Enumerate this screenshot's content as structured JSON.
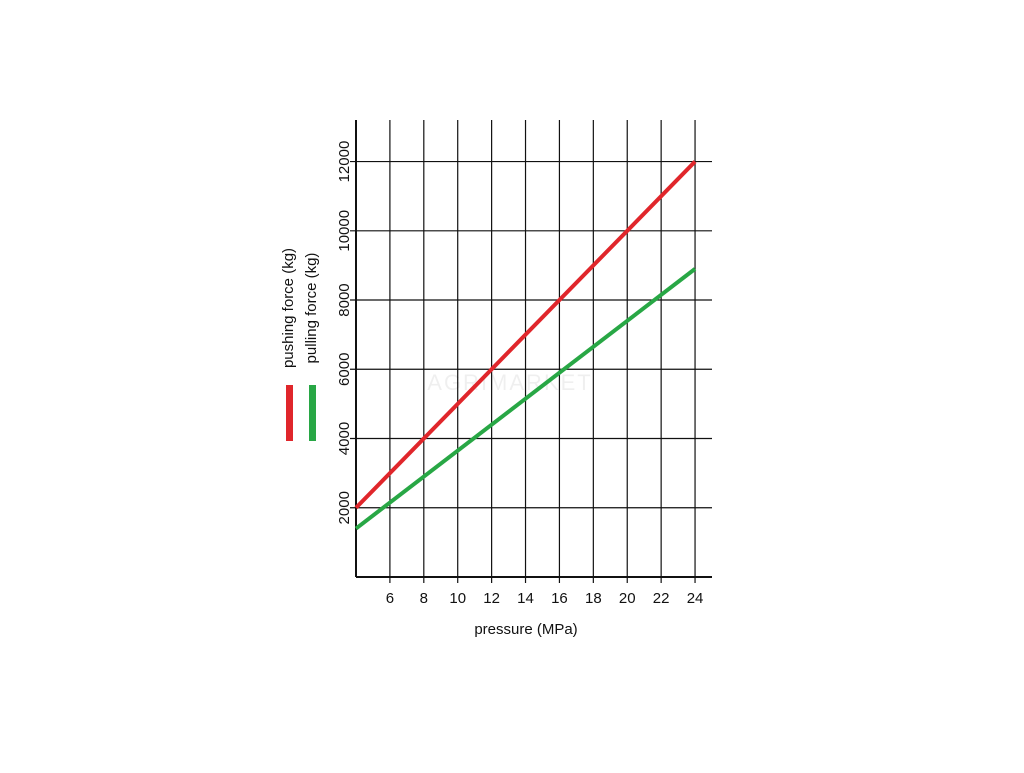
{
  "chart_data": {
    "type": "line",
    "x_label": "pressure (MPa)",
    "watermark": "AGRIMARKET",
    "x": [
      4,
      24
    ],
    "series": [
      {
        "name": "pushing force (kg)",
        "color": "#e0262b",
        "values": [
          2000,
          12000
        ]
      },
      {
        "name": "pulling force (kg)",
        "color": "#28a745",
        "values": [
          1400,
          8900
        ]
      }
    ],
    "xlim": [
      4,
      25
    ],
    "xticks": [
      6,
      8,
      10,
      12,
      14,
      16,
      18,
      20,
      22,
      24
    ],
    "ylim": [
      0,
      13200
    ],
    "yticks": [
      2000,
      4000,
      6000,
      8000,
      10000,
      12000
    ],
    "grid": true
  }
}
